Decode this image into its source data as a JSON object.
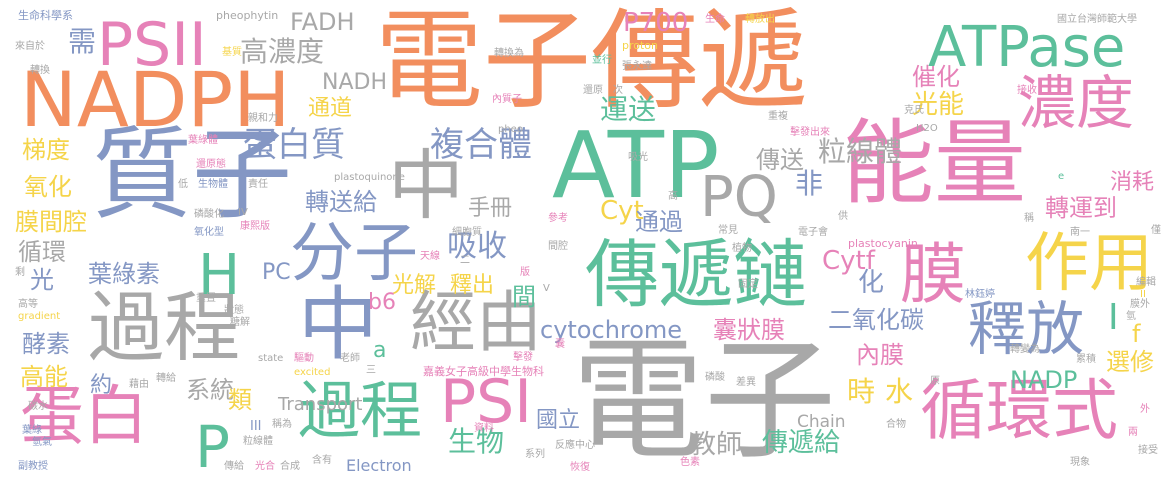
{
  "words": [
    {
      "text": "電子傳遞",
      "color": "#f28e5e"
    },
    {
      "text": "電子",
      "color": "#a8a8a8"
    },
    {
      "text": "質子",
      "color": "#8497c4"
    },
    {
      "text": "能量",
      "color": "#e682b8"
    },
    {
      "text": "ATP",
      "color": "#5cbf9b"
    },
    {
      "text": "NADPH",
      "color": "#f28e5e"
    },
    {
      "text": "傳遞鏈",
      "color": "#5cbf9b"
    },
    {
      "text": "過程",
      "color": "#a8a8a8"
    },
    {
      "text": "中",
      "color": "#a8a8a8"
    },
    {
      "text": "中",
      "color": "#8497c4"
    },
    {
      "text": "經由",
      "color": "#a8a8a8"
    },
    {
      "text": "PSII",
      "color": "#e682b8"
    },
    {
      "text": "ATPase",
      "color": "#5cbf9b"
    },
    {
      "text": "濃度",
      "color": "#e682b8"
    },
    {
      "text": "分子",
      "color": "#8497c4"
    },
    {
      "text": "膜",
      "color": "#e682b8"
    },
    {
      "text": "作用",
      "color": "#f5d44a"
    },
    {
      "text": "釋放",
      "color": "#8497c4"
    },
    {
      "text": "循環式",
      "color": "#e682b8"
    },
    {
      "text": "過程",
      "color": "#5cbf9b"
    },
    {
      "text": "PSI",
      "color": "#e682b8"
    },
    {
      "text": "蛋白",
      "color": "#e682b8"
    },
    {
      "text": "P",
      "color": "#5cbf9b"
    },
    {
      "text": "H",
      "color": "#5cbf9b"
    },
    {
      "text": "PQ",
      "color": "#a8a8a8"
    },
    {
      "text": "蛋白質",
      "color": "#8497c4"
    },
    {
      "text": "複合體",
      "color": "#8497c4"
    },
    {
      "text": "高濃度",
      "color": "#a8a8a8"
    },
    {
      "text": "需",
      "color": "#8497c4"
    },
    {
      "text": "吸收",
      "color": "#8497c4"
    },
    {
      "text": "葉綠素",
      "color": "#8497c4"
    },
    {
      "text": "cytochrome",
      "color": "#8497c4"
    },
    {
      "text": "囊狀膜",
      "color": "#e682b8"
    },
    {
      "text": "傳遞給",
      "color": "#5cbf9b"
    },
    {
      "text": "生物",
      "color": "#5cbf9b"
    },
    {
      "text": "教師",
      "color": "#a8a8a8"
    },
    {
      "text": "系統",
      "color": "#a8a8a8"
    },
    {
      "text": "P700",
      "color": "#e682b8"
    },
    {
      "text": "FADH",
      "color": "#a8a8a8"
    },
    {
      "text": "NADH",
      "color": "#a8a8a8"
    },
    {
      "text": "通道",
      "color": "#f5d44a"
    },
    {
      "text": "運送",
      "color": "#5cbf9b"
    },
    {
      "text": "光能",
      "color": "#f5d44a"
    },
    {
      "text": "催化",
      "color": "#e682b8"
    },
    {
      "text": "粒線體",
      "color": "#a8a8a8"
    },
    {
      "text": "傳送",
      "color": "#a8a8a8"
    },
    {
      "text": "轉運到",
      "color": "#e682b8"
    },
    {
      "text": "消耗",
      "color": "#e682b8"
    },
    {
      "text": "轉送給",
      "color": "#8497c4"
    },
    {
      "text": "手冊",
      "color": "#a8a8a8"
    },
    {
      "text": "Cyt",
      "color": "#f5d44a"
    },
    {
      "text": "通過",
      "color": "#8497c4"
    },
    {
      "text": "非",
      "color": "#8497c4"
    },
    {
      "text": "Cytf",
      "color": "#e682b8"
    },
    {
      "text": "化",
      "color": "#8497c4"
    },
    {
      "text": "光解",
      "color": "#f5d44a"
    },
    {
      "text": "釋出",
      "color": "#f5d44a"
    },
    {
      "text": "間",
      "color": "#5cbf9b"
    },
    {
      "text": "二氧化碳",
      "color": "#8497c4"
    },
    {
      "text": "內膜",
      "color": "#e682b8"
    },
    {
      "text": "NADP",
      "color": "#5cbf9b"
    },
    {
      "text": "選修",
      "color": "#f5d44a"
    },
    {
      "text": "時",
      "color": "#f5d44a"
    },
    {
      "text": "水",
      "color": "#f5d44a"
    },
    {
      "text": "國立",
      "color": "#8497c4"
    },
    {
      "text": "梯度",
      "color": "#f5d44a"
    },
    {
      "text": "氧化",
      "color": "#f5d44a"
    },
    {
      "text": "膜間腔",
      "color": "#f5d44a"
    },
    {
      "text": "循環",
      "color": "#a8a8a8"
    },
    {
      "text": "光",
      "color": "#8497c4"
    },
    {
      "text": "酵素",
      "color": "#8497c4"
    },
    {
      "text": "高能",
      "color": "#f5d44a"
    },
    {
      "text": "約",
      "color": "#8497c4"
    },
    {
      "text": "類",
      "color": "#f5d44a"
    },
    {
      "text": "PC",
      "color": "#8497c4"
    },
    {
      "text": "b6",
      "color": "#e682b8"
    },
    {
      "text": "a",
      "color": "#5cbf9b"
    },
    {
      "text": "f",
      "color": "#f5d44a"
    },
    {
      "text": "I",
      "color": "#5cbf9b"
    },
    {
      "text": "Transport",
      "color": "#a8a8a8"
    },
    {
      "text": "Electron",
      "color": "#8497c4"
    },
    {
      "text": "Chain",
      "color": "#a8a8a8"
    },
    {
      "text": "生命科學系",
      "color": "#8497c4"
    },
    {
      "text": "來自於",
      "color": "#a8a8a8"
    },
    {
      "text": "轉換",
      "color": "#a8a8a8"
    },
    {
      "text": "pheophytin",
      "color": "#a8a8a8"
    },
    {
      "text": "基質",
      "color": "#f5d44a"
    },
    {
      "text": "轉換為",
      "color": "#a8a8a8"
    },
    {
      "text": "proton",
      "color": "#f5d44a"
    },
    {
      "text": "張永達",
      "color": "#a8a8a8"
    },
    {
      "text": "並行",
      "color": "#5cbf9b"
    },
    {
      "text": "生命",
      "color": "#e682b8"
    },
    {
      "text": "轉放出",
      "color": "#f5d44a"
    },
    {
      "text": "國立台灣師範大學",
      "color": "#a8a8a8"
    },
    {
      "text": "還原",
      "color": "#a8a8a8"
    },
    {
      "text": "次",
      "color": "#a8a8a8"
    },
    {
      "text": "內質子",
      "color": "#e682b8"
    },
    {
      "text": "接收",
      "color": "#e682b8"
    },
    {
      "text": "克氏",
      "color": "#a8a8a8"
    },
    {
      "text": "重複",
      "color": "#a8a8a8"
    },
    {
      "text": "擊發出來",
      "color": "#e682b8"
    },
    {
      "text": "H2O",
      "color": "#a8a8a8"
    },
    {
      "text": "pheo",
      "color": "#a8a8a8"
    },
    {
      "text": "吸光",
      "color": "#a8a8a8"
    },
    {
      "text": "葉綠體",
      "color": "#e682b8"
    },
    {
      "text": "親和力",
      "color": "#a8a8a8"
    },
    {
      "text": "還原態",
      "color": "#e682b8"
    },
    {
      "text": "生物體",
      "color": "#8497c4"
    },
    {
      "text": "責任",
      "color": "#a8a8a8"
    },
    {
      "text": "低",
      "color": "#a8a8a8"
    },
    {
      "text": "plastoquinone",
      "color": "#a8a8a8"
    },
    {
      "text": "磷酸化",
      "color": "#a8a8a8"
    },
    {
      "text": "氧化型",
      "color": "#8497c4"
    },
    {
      "text": "IV",
      "color": "#a8a8a8"
    },
    {
      "text": "康熙版",
      "color": "#e682b8"
    },
    {
      "text": "細胞質",
      "color": "#a8a8a8"
    },
    {
      "text": "參考",
      "color": "#e682b8"
    },
    {
      "text": "高",
      "color": "#a8a8a8"
    },
    {
      "text": "常見",
      "color": "#a8a8a8"
    },
    {
      "text": "植物",
      "color": "#a8a8a8"
    },
    {
      "text": "電子會",
      "color": "#a8a8a8"
    },
    {
      "text": "plastocyanin",
      "color": "#e682b8"
    },
    {
      "text": "供",
      "color": "#a8a8a8"
    },
    {
      "text": "稱",
      "color": "#a8a8a8"
    },
    {
      "text": "南一",
      "color": "#a8a8a8"
    },
    {
      "text": "編輯",
      "color": "#a8a8a8"
    },
    {
      "text": "僅",
      "color": "#a8a8a8"
    },
    {
      "text": "e",
      "color": "#5cbf9b"
    },
    {
      "text": "天線",
      "color": "#e682b8"
    },
    {
      "text": "二",
      "color": "#a8a8a8"
    },
    {
      "text": "版",
      "color": "#e682b8"
    },
    {
      "text": "間腔",
      "color": "#a8a8a8"
    },
    {
      "text": "固定",
      "color": "#a8a8a8"
    },
    {
      "text": "V",
      "color": "#a8a8a8"
    },
    {
      "text": "林鈺婷",
      "color": "#8497c4"
    },
    {
      "text": "膜外",
      "color": "#a8a8a8"
    },
    {
      "text": "II",
      "color": "#f5d44a"
    },
    {
      "text": "氫",
      "color": "#a8a8a8"
    },
    {
      "text": "剩",
      "color": "#a8a8a8"
    },
    {
      "text": "高等",
      "color": "#a8a8a8"
    },
    {
      "text": "gradient",
      "color": "#f5d44a"
    },
    {
      "text": "重置",
      "color": "#a8a8a8"
    },
    {
      "text": "狀態",
      "color": "#a8a8a8"
    },
    {
      "text": "糖解",
      "color": "#a8a8a8"
    },
    {
      "text": "state",
      "color": "#a8a8a8"
    },
    {
      "text": "驅動",
      "color": "#e682b8"
    },
    {
      "text": "老師",
      "color": "#a8a8a8"
    },
    {
      "text": "三",
      "color": "#a8a8a8"
    },
    {
      "text": "excited",
      "color": "#f5d44a"
    },
    {
      "text": "藉由",
      "color": "#a8a8a8"
    },
    {
      "text": "轉給",
      "color": "#a8a8a8"
    },
    {
      "text": "嘉義女子高級中學生物科",
      "color": "#e682b8"
    },
    {
      "text": "擊發",
      "color": "#e682b8"
    },
    {
      "text": "囊",
      "color": "#e682b8"
    },
    {
      "text": "磷酸",
      "color": "#a8a8a8"
    },
    {
      "text": "轉變為",
      "color": "#a8a8a8"
    },
    {
      "text": "累積",
      "color": "#a8a8a8"
    },
    {
      "text": "原",
      "color": "#a8a8a8"
    },
    {
      "text": "差異",
      "color": "#a8a8a8"
    },
    {
      "text": "碳水",
      "color": "#a8a8a8"
    },
    {
      "text": "III",
      "color": "#8497c4"
    },
    {
      "text": "稱為",
      "color": "#a8a8a8"
    },
    {
      "text": "粒線體",
      "color": "#a8a8a8"
    },
    {
      "text": "合物",
      "color": "#a8a8a8"
    },
    {
      "text": "外",
      "color": "#e682b8"
    },
    {
      "text": "兩",
      "color": "#e682b8"
    },
    {
      "text": "葉綠",
      "color": "#8497c4"
    },
    {
      "text": "氫氣",
      "color": "#8497c4"
    },
    {
      "text": "副教授",
      "color": "#8497c4"
    },
    {
      "text": "傳給",
      "color": "#a8a8a8"
    },
    {
      "text": "光合",
      "color": "#e682b8"
    },
    {
      "text": "合成",
      "color": "#a8a8a8"
    },
    {
      "text": "含有",
      "color": "#a8a8a8"
    },
    {
      "text": "資料",
      "color": "#e682b8"
    },
    {
      "text": "系列",
      "color": "#a8a8a8"
    },
    {
      "text": "反應中心",
      "color": "#a8a8a8"
    },
    {
      "text": "恢復",
      "color": "#e682b8"
    },
    {
      "text": "色素",
      "color": "#e682b8"
    },
    {
      "text": "現象",
      "color": "#a8a8a8"
    },
    {
      "text": "接受",
      "color": "#a8a8a8"
    }
  ]
}
